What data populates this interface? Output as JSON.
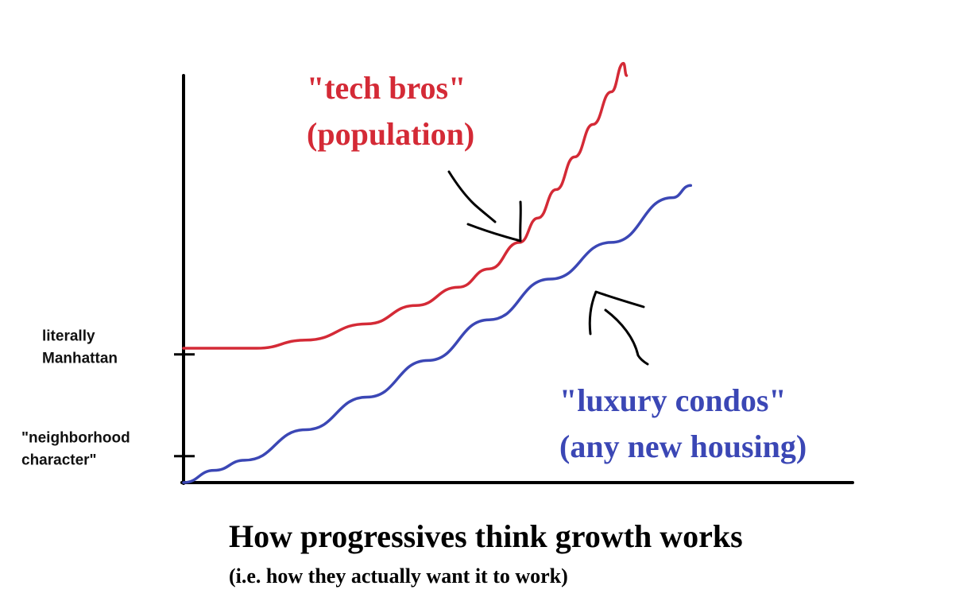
{
  "chart_data": {
    "type": "line",
    "title": "How progressives think growth works",
    "subtitle": "(i.e. how they actually want it to work)",
    "xlabel": "",
    "ylabel": "",
    "grid": false,
    "legend": "none (series labelled directly on the chart)",
    "xlim": [
      0,
      1
    ],
    "ylim": [
      0,
      1
    ],
    "y_ticks": [
      {
        "value": 0.065,
        "label_lines": [
          "\"neighborhood",
          "character\""
        ]
      },
      {
        "value": 0.315,
        "label_lines": [
          "literally",
          "Manhattan"
        ]
      }
    ],
    "series": [
      {
        "label_lines": [
          "\"tech bros\"",
          "(population)"
        ],
        "color": "#d42a36",
        "x": [
          0,
          0.12,
          0.2,
          0.3,
          0.38,
          0.45,
          0.5,
          0.55,
          0.58,
          0.61,
          0.64,
          0.67,
          0.7,
          0.72,
          0.725
        ],
        "y": [
          0.33,
          0.33,
          0.35,
          0.39,
          0.435,
          0.48,
          0.525,
          0.59,
          0.65,
          0.72,
          0.8,
          0.88,
          0.96,
          1.03,
          1.0
        ]
      },
      {
        "label_lines": [
          "\"luxury condos\"",
          "(any new housing)"
        ],
        "color": "#3b47b5",
        "x": [
          0,
          0.05,
          0.1,
          0.2,
          0.3,
          0.4,
          0.5,
          0.6,
          0.7,
          0.8,
          0.83
        ],
        "y": [
          0,
          0.03,
          0.055,
          0.13,
          0.21,
          0.3,
          0.4,
          0.5,
          0.59,
          0.7,
          0.73
        ]
      }
    ],
    "annotations": [
      {
        "type": "arrow",
        "points_to": "\"tech bros\" (population)"
      },
      {
        "type": "arrow",
        "points_to": "\"luxury condos\" (any new housing)"
      }
    ]
  }
}
